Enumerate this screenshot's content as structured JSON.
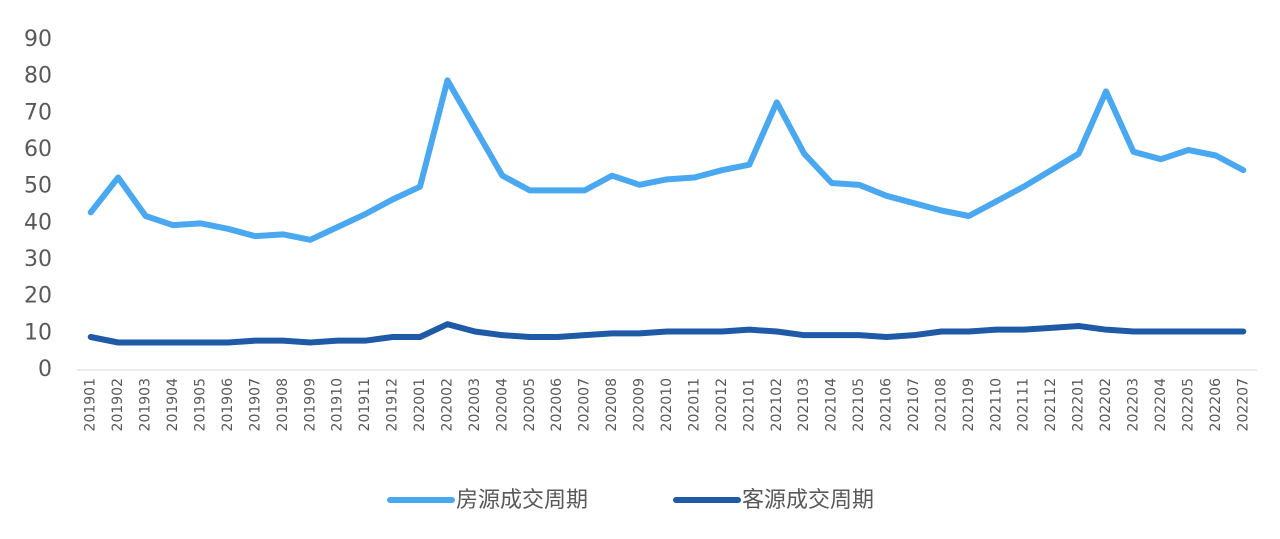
{
  "chart_data": {
    "type": "line",
    "categories": [
      "201901",
      "201902",
      "201903",
      "201904",
      "201905",
      "201906",
      "201907",
      "201908",
      "201909",
      "201910",
      "201911",
      "201912",
      "202001",
      "202002",
      "202003",
      "202004",
      "202005",
      "202006",
      "202007",
      "202008",
      "202009",
      "202010",
      "202011",
      "202012",
      "202101",
      "202102",
      "202103",
      "202104",
      "202105",
      "202106",
      "202107",
      "202108",
      "202109",
      "202110",
      "202111",
      "202112",
      "202201",
      "202202",
      "202203",
      "202204",
      "202205",
      "202206",
      "202207"
    ],
    "series": [
      {
        "name": "房源成交周期",
        "color": "#4aa8f0",
        "values": [
          43,
          52.5,
          42,
          39.5,
          40,
          38.5,
          36.5,
          37,
          35.5,
          39,
          42.5,
          46.5,
          50,
          79,
          66,
          53,
          49,
          49,
          49,
          53,
          50.5,
          52,
          52.5,
          54.5,
          56,
          73,
          59,
          51,
          50.5,
          47.5,
          45.5,
          43.5,
          42,
          46,
          50,
          54.5,
          59,
          76,
          59.5,
          57.5,
          60,
          58.5,
          54.5
        ]
      },
      {
        "name": "客源成交周期",
        "color": "#1f5aa6",
        "values": [
          9,
          7.5,
          7.5,
          7.5,
          7.5,
          7.5,
          8,
          8,
          7.5,
          8,
          8,
          9,
          9,
          12.5,
          10.5,
          9.5,
          9,
          9,
          9.5,
          10,
          10,
          10.5,
          10.5,
          10.5,
          11,
          10.5,
          9.5,
          9.5,
          9.5,
          9,
          9.5,
          10.5,
          10.5,
          11,
          11,
          11.5,
          12,
          11,
          10.5,
          10.5,
          10.5,
          10.5,
          10.5
        ]
      }
    ],
    "ylim": [
      0,
      90
    ],
    "yticks": [
      0,
      10,
      20,
      30,
      40,
      50,
      60,
      70,
      80,
      90
    ],
    "grid": false
  }
}
